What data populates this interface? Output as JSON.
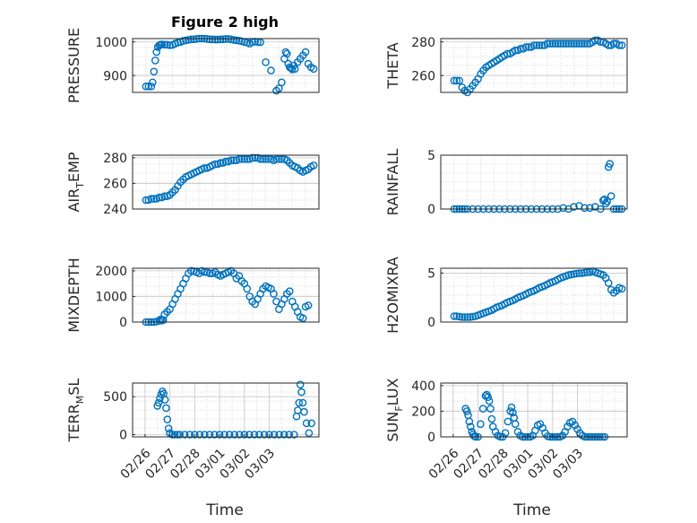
{
  "figure": {
    "title": "Figure 2 high",
    "xlabel": "Time"
  },
  "chart_data": [
    {
      "type": "scatter",
      "ylabel": "PRESSURE",
      "ylim": [
        850,
        1010
      ],
      "yticks": [
        {
          "v": 900,
          "label": "900"
        },
        {
          "v": 1000,
          "label": "1000"
        }
      ],
      "xticks": [],
      "xlim": [
        0,
        7
      ],
      "grid": true,
      "x": [
        0.5,
        0.6,
        0.7,
        0.75,
        0.8,
        0.85,
        0.9,
        0.95,
        1.0,
        1.05,
        1.1,
        1.2,
        1.3,
        1.4,
        1.5,
        1.6,
        1.7,
        1.8,
        1.9,
        2.0,
        2.1,
        2.2,
        2.3,
        2.4,
        2.5,
        2.6,
        2.7,
        2.8,
        2.9,
        3.0,
        3.1,
        3.2,
        3.3,
        3.4,
        3.5,
        3.6,
        3.7,
        3.8,
        3.9,
        4.0,
        4.1,
        4.2,
        4.3,
        4.4,
        4.5,
        4.6,
        4.7,
        4.8,
        5.0,
        5.2,
        5.4,
        5.5,
        5.6,
        5.7,
        5.75,
        5.8,
        5.85,
        5.9,
        5.95,
        6.0,
        6.05,
        6.1,
        6.2,
        6.3,
        6.4,
        6.5,
        6.6,
        6.7,
        6.8
      ],
      "y": [
        868,
        868,
        868,
        880,
        912,
        945,
        970,
        985,
        990,
        992,
        993,
        992,
        992,
        990,
        991,
        995,
        998,
        1000,
        1003,
        1005,
        1006,
        1008,
        1008,
        1009,
        1010,
        1010,
        1010,
        1009,
        1008,
        1008,
        1007,
        1007,
        1008,
        1008,
        1009,
        1009,
        1008,
        1006,
        1005,
        1004,
        1002,
        1000,
        998,
        995,
        1000,
        1001,
        1000,
        999,
        940,
        915,
        855,
        862,
        880,
        950,
        970,
        965,
        935,
        925,
        922,
        918,
        930,
        920,
        940,
        950,
        960,
        970,
        935,
        925,
        920
      ]
    },
    {
      "type": "scatter",
      "ylabel": "THETA",
      "ylim": [
        250,
        282
      ],
      "yticks": [
        {
          "v": 260,
          "label": "260"
        },
        {
          "v": 280,
          "label": "280"
        }
      ],
      "xticks": [],
      "xlim": [
        0,
        7
      ],
      "grid": true,
      "x": [
        0.5,
        0.6,
        0.7,
        0.8,
        0.9,
        1.0,
        1.1,
        1.2,
        1.3,
        1.4,
        1.5,
        1.6,
        1.7,
        1.8,
        1.9,
        2.0,
        2.1,
        2.2,
        2.3,
        2.4,
        2.5,
        2.6,
        2.7,
        2.8,
        2.9,
        3.0,
        3.1,
        3.2,
        3.3,
        3.4,
        3.5,
        3.6,
        3.7,
        3.8,
        3.9,
        4.0,
        4.1,
        4.2,
        4.3,
        4.4,
        4.5,
        4.6,
        4.7,
        4.8,
        4.9,
        5.0,
        5.1,
        5.2,
        5.3,
        5.4,
        5.5,
        5.6,
        5.7,
        5.8,
        5.9,
        6.0,
        6.1,
        6.2,
        6.3,
        6.4,
        6.5,
        6.6,
        6.7,
        6.8
      ],
      "y": [
        257,
        257,
        257,
        253,
        251,
        250,
        252,
        254,
        256,
        258,
        261,
        263,
        265,
        266,
        267,
        268,
        269,
        270,
        271,
        272,
        273,
        273,
        274,
        275,
        275,
        276,
        276,
        277,
        277,
        277,
        278,
        278,
        278,
        278,
        278,
        279,
        279,
        279,
        279,
        279,
        279,
        279,
        279,
        279,
        279,
        279,
        279,
        279,
        279,
        279,
        279,
        279,
        280,
        281,
        281,
        280,
        280,
        279,
        278,
        278,
        279,
        279,
        278,
        278
      ]
    },
    {
      "type": "scatter",
      "ylabel": "AIR_TEMP",
      "ylim": [
        240,
        282
      ],
      "yticks": [
        {
          "v": 240,
          "label": "240"
        },
        {
          "v": 260,
          "label": "260"
        },
        {
          "v": 280,
          "label": "280"
        }
      ],
      "xticks": [],
      "xlim": [
        0,
        7
      ],
      "grid": true,
      "x": [
        0.5,
        0.6,
        0.7,
        0.8,
        0.9,
        1.0,
        1.1,
        1.2,
        1.3,
        1.4,
        1.5,
        1.6,
        1.7,
        1.8,
        1.9,
        2.0,
        2.1,
        2.2,
        2.3,
        2.4,
        2.5,
        2.6,
        2.7,
        2.8,
        2.9,
        3.0,
        3.1,
        3.2,
        3.3,
        3.4,
        3.5,
        3.6,
        3.7,
        3.8,
        3.9,
        4.0,
        4.1,
        4.2,
        4.3,
        4.4,
        4.5,
        4.6,
        4.7,
        4.8,
        4.9,
        5.0,
        5.1,
        5.2,
        5.3,
        5.4,
        5.5,
        5.6,
        5.7,
        5.8,
        5.9,
        6.0,
        6.1,
        6.2,
        6.3,
        6.4,
        6.5,
        6.6,
        6.7,
        6.8
      ],
      "y": [
        247,
        247,
        248,
        248,
        248,
        249,
        249,
        250,
        250,
        251,
        253,
        255,
        258,
        261,
        263,
        265,
        266,
        267,
        268,
        269,
        270,
        271,
        272,
        272,
        273,
        274,
        275,
        275,
        276,
        276,
        277,
        277,
        278,
        278,
        278,
        279,
        279,
        279,
        279,
        279,
        280,
        280,
        280,
        279,
        279,
        279,
        279,
        279,
        278,
        279,
        279,
        279,
        279,
        278,
        276,
        274,
        273,
        272,
        270,
        269,
        270,
        271,
        273,
        274
      ]
    },
    {
      "type": "scatter",
      "ylabel": "RAINFALL",
      "ylim": [
        0,
        5
      ],
      "yticks": [
        {
          "v": 0,
          "label": "0"
        },
        {
          "v": 5,
          "label": "5"
        }
      ],
      "xticks": [],
      "xlim": [
        0,
        7
      ],
      "grid": true,
      "x": [
        0.5,
        0.6,
        0.7,
        0.8,
        0.9,
        1.0,
        1.2,
        1.4,
        1.6,
        1.8,
        2.0,
        2.2,
        2.4,
        2.6,
        2.8,
        3.0,
        3.2,
        3.4,
        3.6,
        3.8,
        4.0,
        4.2,
        4.4,
        4.6,
        4.8,
        5.0,
        5.2,
        5.4,
        5.6,
        5.8,
        6.0,
        6.1,
        6.15,
        6.2,
        6.25,
        6.3,
        6.35,
        6.4,
        6.5,
        6.6,
        6.7,
        6.8
      ],
      "y": [
        0,
        0,
        0,
        0,
        0,
        0,
        0,
        0,
        0,
        0,
        0,
        0,
        0,
        0,
        0,
        0,
        0,
        0,
        0,
        0,
        0,
        0,
        0,
        0.1,
        0,
        0.2,
        0.3,
        0.1,
        0.1,
        0.2,
        0,
        0.8,
        0.9,
        0.5,
        0.7,
        3.9,
        4.2,
        1.2,
        0,
        0,
        0,
        0
      ]
    },
    {
      "type": "scatter",
      "ylabel": "MIXDEPTH",
      "ylim": [
        0,
        2100
      ],
      "yticks": [
        {
          "v": 0,
          "label": "0"
        },
        {
          "v": 1000,
          "label": "1000"
        },
        {
          "v": 2000,
          "label": "2000"
        }
      ],
      "xticks": [],
      "xlim": [
        0,
        7
      ],
      "grid": true,
      "x": [
        0.5,
        0.6,
        0.7,
        0.8,
        0.9,
        1.0,
        1.05,
        1.1,
        1.15,
        1.2,
        1.3,
        1.4,
        1.5,
        1.6,
        1.7,
        1.8,
        1.9,
        2.0,
        2.1,
        2.2,
        2.3,
        2.4,
        2.5,
        2.6,
        2.7,
        2.8,
        2.9,
        3.0,
        3.1,
        3.2,
        3.3,
        3.4,
        3.5,
        3.6,
        3.7,
        3.8,
        3.9,
        4.0,
        4.1,
        4.2,
        4.3,
        4.4,
        4.5,
        4.6,
        4.7,
        4.8,
        4.9,
        5.0,
        5.1,
        5.2,
        5.3,
        5.4,
        5.5,
        5.6,
        5.7,
        5.8,
        5.9,
        6.0,
        6.1,
        6.2,
        6.3,
        6.4,
        6.5,
        6.6
      ],
      "y": [
        0,
        0,
        0,
        0,
        20,
        50,
        100,
        60,
        80,
        300,
        400,
        500,
        700,
        900,
        1100,
        1300,
        1500,
        1700,
        1900,
        2000,
        1980,
        1950,
        1900,
        2000,
        1950,
        1950,
        1900,
        1900,
        1950,
        1850,
        1800,
        1850,
        1900,
        1950,
        2000,
        1900,
        1700,
        1800,
        1600,
        1500,
        1300,
        1000,
        800,
        700,
        900,
        1100,
        1300,
        1400,
        1350,
        1300,
        1100,
        800,
        500,
        700,
        900,
        1100,
        1200,
        800,
        600,
        400,
        200,
        150,
        600,
        650
      ]
    },
    {
      "type": "scatter",
      "ylabel": "H2OMIXRA",
      "ylim": [
        0,
        5.5
      ],
      "yticks": [
        {
          "v": 0,
          "label": "0"
        },
        {
          "v": 5,
          "label": "5"
        }
      ],
      "xticks": [],
      "xlim": [
        0,
        7
      ],
      "grid": true,
      "x": [
        0.5,
        0.6,
        0.7,
        0.8,
        0.9,
        1.0,
        1.1,
        1.2,
        1.3,
        1.4,
        1.5,
        1.6,
        1.7,
        1.8,
        1.9,
        2.0,
        2.1,
        2.2,
        2.3,
        2.4,
        2.5,
        2.6,
        2.7,
        2.8,
        2.9,
        3.0,
        3.1,
        3.2,
        3.3,
        3.4,
        3.5,
        3.6,
        3.7,
        3.8,
        3.9,
        4.0,
        4.1,
        4.2,
        4.3,
        4.4,
        4.5,
        4.6,
        4.7,
        4.8,
        4.9,
        5.0,
        5.1,
        5.2,
        5.3,
        5.4,
        5.5,
        5.6,
        5.7,
        5.8,
        5.9,
        6.0,
        6.1,
        6.2,
        6.3,
        6.4,
        6.5,
        6.6,
        6.7,
        6.8
      ],
      "y": [
        0.6,
        0.6,
        0.55,
        0.5,
        0.5,
        0.5,
        0.5,
        0.55,
        0.6,
        0.7,
        0.8,
        0.9,
        1.0,
        1.1,
        1.2,
        1.35,
        1.5,
        1.6,
        1.7,
        1.85,
        2.0,
        2.1,
        2.2,
        2.35,
        2.5,
        2.6,
        2.7,
        2.85,
        3.0,
        3.1,
        3.2,
        3.35,
        3.5,
        3.6,
        3.7,
        3.85,
        4.0,
        4.1,
        4.2,
        4.35,
        4.5,
        4.6,
        4.7,
        4.8,
        4.85,
        4.9,
        4.95,
        5.0,
        5.0,
        5.05,
        5.1,
        5.1,
        5.2,
        5.1,
        5.0,
        4.9,
        4.8,
        4.5,
        4.0,
        3.3,
        3.0,
        3.2,
        3.5,
        3.4
      ]
    },
    {
      "type": "scatter",
      "ylabel": "TERR_MSL",
      "ylim": [
        -30,
        680
      ],
      "yticks": [
        {
          "v": 0,
          "label": "0"
        },
        {
          "v": 500,
          "label": "500"
        }
      ],
      "xlim": [
        -0.5,
        7
      ],
      "xticks": [
        {
          "v": 0,
          "label": "02/26"
        },
        {
          "v": 1,
          "label": "02/27"
        },
        {
          "v": 2,
          "label": "02/28"
        },
        {
          "v": 3,
          "label": "03/01"
        },
        {
          "v": 4,
          "label": "03/02"
        },
        {
          "v": 5,
          "label": "03/03"
        }
      ],
      "grid": true,
      "x": [
        0.5,
        0.55,
        0.6,
        0.65,
        0.7,
        0.75,
        0.8,
        0.85,
        0.9,
        0.95,
        1.0,
        1.1,
        1.2,
        1.3,
        1.4,
        1.6,
        1.8,
        2.0,
        2.2,
        2.4,
        2.6,
        2.8,
        3.0,
        3.2,
        3.4,
        3.6,
        3.8,
        4.0,
        4.2,
        4.4,
        4.6,
        4.8,
        5.0,
        5.2,
        5.4,
        5.6,
        5.8,
        6.0,
        6.1,
        6.15,
        6.2,
        6.25,
        6.3,
        6.35,
        6.4,
        6.5,
        6.6,
        6.7
      ],
      "y": [
        380,
        420,
        480,
        530,
        570,
        540,
        460,
        350,
        200,
        80,
        20,
        0,
        0,
        0,
        0,
        0,
        0,
        0,
        0,
        0,
        0,
        0,
        0,
        0,
        0,
        0,
        0,
        0,
        0,
        0,
        0,
        0,
        0,
        0,
        0,
        0,
        0,
        0,
        240,
        320,
        420,
        660,
        560,
        420,
        300,
        150,
        20,
        150
      ]
    },
    {
      "type": "scatter",
      "ylabel": "SUN_FLUX",
      "ylim": [
        0,
        420
      ],
      "yticks": [
        {
          "v": 0,
          "label": "0"
        },
        {
          "v": 200,
          "label": "200"
        },
        {
          "v": 400,
          "label": "400"
        }
      ],
      "xlim": [
        -0.5,
        7
      ],
      "xticks": [
        {
          "v": 0,
          "label": "02/26"
        },
        {
          "v": 1,
          "label": "02/27"
        },
        {
          "v": 2,
          "label": "02/28"
        },
        {
          "v": 3,
          "label": "03/01"
        },
        {
          "v": 4,
          "label": "03/02"
        },
        {
          "v": 5,
          "label": "03/03"
        }
      ],
      "grid": true,
      "x": [
        0.5,
        0.55,
        0.6,
        0.65,
        0.7,
        0.75,
        0.8,
        0.85,
        0.9,
        1.0,
        1.1,
        1.2,
        1.3,
        1.35,
        1.4,
        1.45,
        1.5,
        1.55,
        1.6,
        1.7,
        1.8,
        1.9,
        2.0,
        2.1,
        2.2,
        2.3,
        2.35,
        2.4,
        2.45,
        2.5,
        2.6,
        2.7,
        2.8,
        2.9,
        3.0,
        3.1,
        3.2,
        3.3,
        3.4,
        3.5,
        3.6,
        3.7,
        3.8,
        3.9,
        4.0,
        4.1,
        4.2,
        4.3,
        4.4,
        4.5,
        4.6,
        4.7,
        4.8,
        4.9,
        5.0,
        5.1,
        5.2,
        5.3,
        5.4,
        5.5,
        5.6,
        5.7,
        5.8,
        5.9,
        6.0,
        6.1
      ],
      "y": [
        220,
        200,
        170,
        120,
        80,
        40,
        20,
        5,
        0,
        0,
        100,
        220,
        320,
        330,
        310,
        280,
        220,
        140,
        80,
        40,
        10,
        0,
        0,
        30,
        120,
        200,
        230,
        190,
        150,
        100,
        40,
        10,
        0,
        0,
        0,
        0,
        10,
        50,
        90,
        100,
        70,
        30,
        5,
        0,
        0,
        0,
        0,
        0,
        10,
        40,
        80,
        110,
        120,
        90,
        60,
        30,
        10,
        0,
        0,
        0,
        0,
        0,
        0,
        0,
        0,
        0
      ]
    }
  ]
}
